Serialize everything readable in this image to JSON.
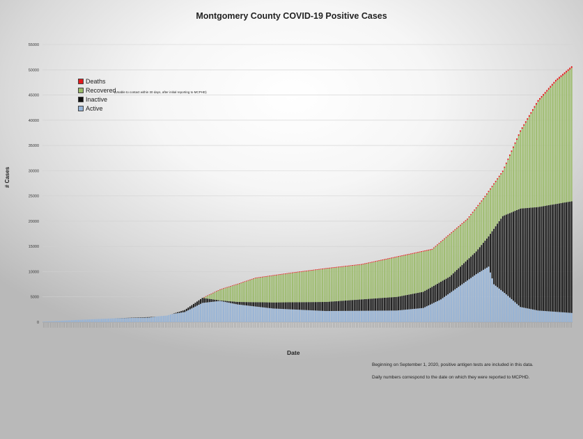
{
  "chart_data": {
    "type": "bar",
    "stacked": true,
    "title": "Montgomery County COVID-19 Positive Cases",
    "xlabel": "Date",
    "ylabel": "# Cases",
    "ylim": [
      0,
      55000
    ],
    "yticks": [
      0,
      5000,
      10000,
      15000,
      20000,
      25000,
      30000,
      35000,
      40000,
      45000,
      50000,
      55000
    ],
    "grid": true,
    "legend_position": "top-left",
    "series": [
      {
        "name": "Deaths",
        "color": "#e31a1c"
      },
      {
        "name": "Recovered",
        "color": "#9bbb6a"
      },
      {
        "name": "Inactive",
        "color": "#111111",
        "note": "(Unable to contact within 30 days, after initial reporting to MCPHD)"
      },
      {
        "name": "Active",
        "color": "#95b3d7"
      }
    ],
    "bar_count": 300,
    "approximate_totals": [
      [
        0,
        100
      ],
      [
        20,
        450
      ],
      [
        40,
        750
      ],
      [
        60,
        1000
      ],
      [
        70,
        1300
      ],
      [
        80,
        2400
      ],
      [
        90,
        4800
      ],
      [
        100,
        6500
      ],
      [
        110,
        7600
      ],
      [
        120,
        8800
      ],
      [
        140,
        9800
      ],
      [
        160,
        10700
      ],
      [
        180,
        11500
      ],
      [
        200,
        13000
      ],
      [
        220,
        14500
      ],
      [
        230,
        17500
      ],
      [
        240,
        20500
      ],
      [
        250,
        25000
      ],
      [
        260,
        30000
      ],
      [
        270,
        38000
      ],
      [
        280,
        44000
      ],
      [
        290,
        48000
      ],
      [
        300,
        51000
      ]
    ],
    "approximate_active": [
      [
        0,
        100
      ],
      [
        20,
        450
      ],
      [
        40,
        750
      ],
      [
        60,
        900
      ],
      [
        80,
        2000
      ],
      [
        90,
        3800
      ],
      [
        100,
        4200
      ],
      [
        110,
        3500
      ],
      [
        130,
        2700
      ],
      [
        160,
        2200
      ],
      [
        200,
        2300
      ],
      [
        215,
        2800
      ],
      [
        225,
        4500
      ],
      [
        235,
        7000
      ],
      [
        245,
        9500
      ],
      [
        252,
        11000
      ],
      [
        255,
        7500
      ],
      [
        262,
        5500
      ],
      [
        270,
        3000
      ],
      [
        280,
        2300
      ],
      [
        300,
        1800
      ]
    ],
    "approximate_inactive_top": [
      [
        0,
        100
      ],
      [
        90,
        4800
      ],
      [
        100,
        4300
      ],
      [
        110,
        4000
      ],
      [
        130,
        3900
      ],
      [
        160,
        4000
      ],
      [
        200,
        5000
      ],
      [
        215,
        6000
      ],
      [
        230,
        9000
      ],
      [
        245,
        14000
      ],
      [
        252,
        17000
      ],
      [
        260,
        21000
      ],
      [
        270,
        22500
      ],
      [
        280,
        22800
      ],
      [
        300,
        24000
      ]
    ],
    "deaths_band": 300
  },
  "notes": {
    "antigen": "Beginning on September 1, 2020, positive antigen tests are included in this data.",
    "daily": "Daily numbers correspond to the date on which they were reported to MCPHD."
  }
}
